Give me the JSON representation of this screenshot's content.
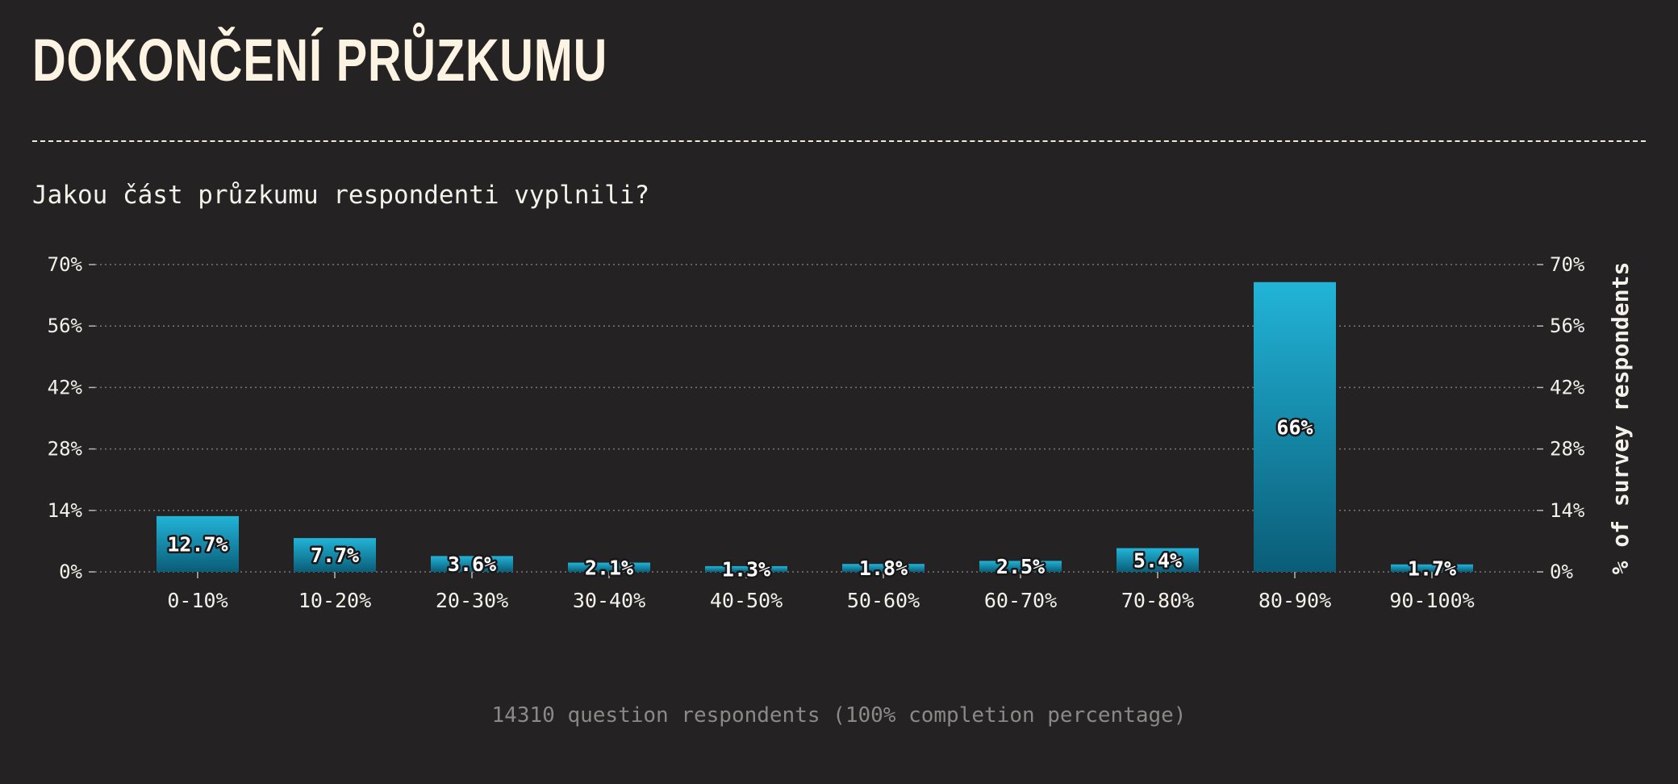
{
  "header": {
    "title": "DOKONČENÍ PRŮZKUMU",
    "subtitle": "Jakou část průzkumu respondenti vyplnili?"
  },
  "footer": {
    "note": "14310 question respondents (100% completion percentage)"
  },
  "colors": {
    "bar_top": "#22b4d8",
    "bar_bottom": "#0a5d78",
    "background": "#252223",
    "grid": "#7d7878"
  },
  "chart_data": {
    "type": "bar",
    "categories": [
      "0-10%",
      "10-20%",
      "20-30%",
      "30-40%",
      "40-50%",
      "50-60%",
      "60-70%",
      "70-80%",
      "80-90%",
      "90-100%"
    ],
    "values": [
      12.7,
      7.7,
      3.6,
      2.1,
      1.3,
      1.8,
      2.5,
      5.4,
      66,
      1.7
    ],
    "value_labels": [
      "12.7%",
      "7.7%",
      "3.6%",
      "2.1%",
      "1.3%",
      "1.8%",
      "2.5%",
      "5.4%",
      "66%",
      "1.7%"
    ],
    "title": "DOKONČENÍ PRŮZKUMU",
    "subtitle": "Jakou část průzkumu respondenti vyplnili?",
    "xlabel": "",
    "ylabel": "% of survey respondents",
    "ylim": [
      0,
      70
    ],
    "yticks": [
      0,
      14,
      28,
      42,
      56,
      70
    ],
    "ytick_labels": [
      "0%",
      "14%",
      "28%",
      "42%",
      "56%",
      "70%"
    ],
    "grid": true,
    "legend": "none"
  }
}
